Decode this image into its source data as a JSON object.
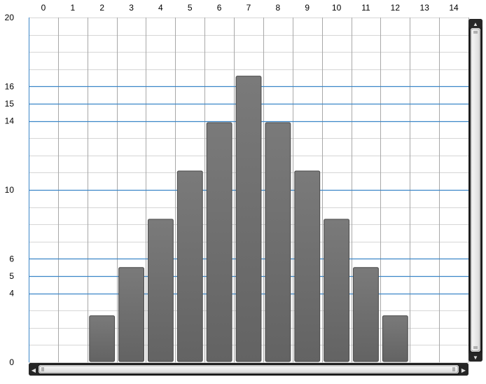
{
  "chart_data": {
    "type": "bar",
    "x": [
      0,
      1,
      2,
      3,
      4,
      5,
      6,
      7,
      8,
      9,
      10,
      11,
      12,
      13,
      14
    ],
    "values": [
      0,
      0,
      2.7,
      5.5,
      8.3,
      11.1,
      13.9,
      16.6,
      13.9,
      11.1,
      8.3,
      5.5,
      2.7,
      0,
      0
    ],
    "x_tick_labels": [
      "0",
      "1",
      "2",
      "3",
      "4",
      "5",
      "6",
      "7",
      "8",
      "9",
      "10",
      "11",
      "12",
      "13",
      "14"
    ],
    "y_tick_labels": [
      "20",
      "16",
      "15",
      "14",
      "10",
      "6",
      "5",
      "4",
      "0"
    ],
    "y_ticks": [
      20,
      16,
      15,
      14,
      10,
      6,
      5,
      4,
      0
    ],
    "highlight_lines": [
      16,
      15,
      14,
      10,
      6,
      5,
      4
    ],
    "xlim": [
      -0.5,
      14.5
    ],
    "ylim": [
      0,
      20
    ],
    "title": "",
    "xlabel": "",
    "ylabel": "",
    "x_axis_position": "top",
    "grid": true,
    "minor_grid_step": 1,
    "colors": {
      "bar_fill": "#6e6e6e",
      "bar_stroke": "#4a4a4a",
      "major_line": "#3b86c8",
      "minor_line": "#d6d6d6",
      "vertical_line": "#a8a8a8"
    }
  },
  "scrollbars": {
    "vertical": {
      "up_icon": "▲",
      "down_icon": "▼"
    },
    "horizontal": {
      "left_icon": "◀",
      "right_icon": "▶"
    }
  }
}
